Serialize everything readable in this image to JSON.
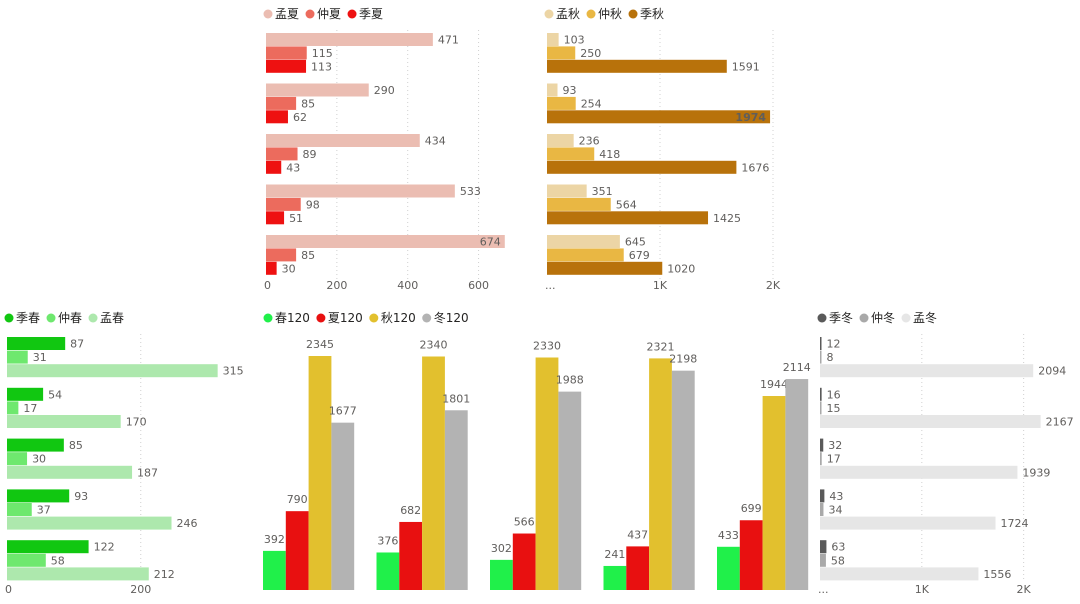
{
  "chart_data": [
    {
      "id": "summer",
      "type": "bar",
      "orientation": "horizontal",
      "title": "",
      "legend_position": "top-left",
      "categories": [
        "",
        "",
        "",
        "",
        ""
      ],
      "series": [
        {
          "name": "孟夏",
          "color": "#ebbdb2",
          "values": [
            471,
            290,
            434,
            533,
            674
          ]
        },
        {
          "name": "仲夏",
          "color": "#ec6b5d",
          "values": [
            115,
            85,
            89,
            98,
            85
          ]
        },
        {
          "name": "季夏",
          "color": "#ee1111",
          "values": [
            113,
            62,
            43,
            51,
            30
          ]
        }
      ],
      "xlim": [
        0,
        700
      ],
      "xticks": [
        0,
        200,
        400,
        600
      ],
      "xtick_labels": [
        "0",
        "200",
        "400",
        "600"
      ]
    },
    {
      "id": "autumn",
      "type": "bar",
      "orientation": "horizontal",
      "title": "",
      "legend_position": "top-left",
      "categories": [
        "",
        "",
        "",
        "",
        ""
      ],
      "series": [
        {
          "name": "孟秋",
          "color": "#ecd5a5",
          "values": [
            103,
            93,
            236,
            351,
            645
          ]
        },
        {
          "name": "仲秋",
          "color": "#e9b743",
          "values": [
            250,
            254,
            418,
            564,
            679
          ]
        },
        {
          "name": "季秋",
          "color": "#b8720b",
          "values": [
            1591,
            1974,
            1676,
            1425,
            1020
          ]
        }
      ],
      "xlim": [
        0,
        2000
      ],
      "xticks": [
        0,
        1000,
        2000
      ],
      "xtick_labels": [
        "...",
        "1K",
        "2K"
      ]
    },
    {
      "id": "spring",
      "type": "bar",
      "orientation": "horizontal",
      "title": "",
      "legend_position": "top-left",
      "categories": [
        "",
        "",
        "",
        "",
        ""
      ],
      "series": [
        {
          "name": "季春",
          "color": "#11c711",
          "values": [
            87,
            54,
            85,
            93,
            122
          ]
        },
        {
          "name": "仲春",
          "color": "#6ee86e",
          "values": [
            31,
            17,
            30,
            37,
            58
          ]
        },
        {
          "name": "孟春",
          "color": "#ade8ad",
          "values": [
            315,
            170,
            187,
            246,
            212
          ]
        }
      ],
      "xlim": [
        0,
        320
      ],
      "xticks": [
        0,
        200
      ],
      "xtick_labels": [
        "0",
        "200"
      ]
    },
    {
      "id": "seasons120",
      "type": "bar",
      "orientation": "vertical",
      "title": "",
      "legend_position": "top-left",
      "categories": [
        "",
        "",
        "",
        "",
        ""
      ],
      "series": [
        {
          "name": "春120",
          "color": "#20f04a",
          "values": [
            392,
            376,
            302,
            241,
            433
          ]
        },
        {
          "name": "夏120",
          "color": "#e81010",
          "values": [
            790,
            682,
            566,
            437,
            699
          ]
        },
        {
          "name": "秋120",
          "color": "#e2c02e",
          "values": [
            2345,
            2340,
            2330,
            2321,
            1944
          ]
        },
        {
          "name": "冬120",
          "color": "#b3b3b3",
          "values": [
            1677,
            1801,
            1988,
            2198,
            2114
          ]
        }
      ],
      "ylim": [
        0,
        2345
      ]
    },
    {
      "id": "winter",
      "type": "bar",
      "orientation": "horizontal",
      "title": "",
      "legend_position": "top-left",
      "categories": [
        "",
        "",
        "",
        "",
        ""
      ],
      "series": [
        {
          "name": "季冬",
          "color": "#5a5a5a",
          "values": [
            12,
            16,
            32,
            43,
            63
          ]
        },
        {
          "name": "仲冬",
          "color": "#a9a9a9",
          "values": [
            8,
            15,
            17,
            34,
            58
          ]
        },
        {
          "name": "孟冬",
          "color": "#e6e6e6",
          "values": [
            2094,
            2167,
            1939,
            1724,
            1556
          ]
        }
      ],
      "xlim": [
        0,
        2200
      ],
      "xticks": [
        0,
        1000,
        2000
      ],
      "xtick_labels": [
        "...",
        "1K",
        "2K"
      ]
    }
  ]
}
